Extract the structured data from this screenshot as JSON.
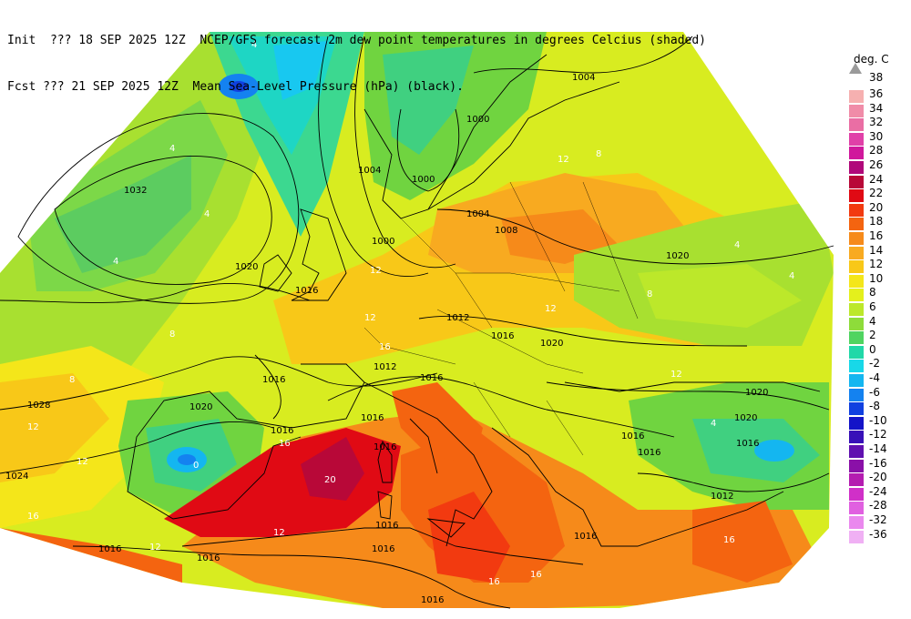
{
  "header": {
    "line1": "Init  ??? 18 SEP 2025 12Z  NCEP/GFS forecast 2m dew point temperatures in degrees Celcius (shaded)",
    "line2": "Fcst ??? 21 SEP 2025 12Z  Mean Sea-Level Pressure (hPa) (black)."
  },
  "legend": {
    "unit": "deg. C",
    "top_marker": "38",
    "entries": [
      {
        "label": "36",
        "color": "#f6b0b0"
      },
      {
        "label": "34",
        "color": "#f08ca8"
      },
      {
        "label": "32",
        "color": "#ea6ea4"
      },
      {
        "label": "30",
        "color": "#e040a8"
      },
      {
        "label": "28",
        "color": "#d0189c"
      },
      {
        "label": "26",
        "color": "#b0087a"
      },
      {
        "label": "24",
        "color": "#b80838"
      },
      {
        "label": "22",
        "color": "#e00a14"
      },
      {
        "label": "20",
        "color": "#f23a10"
      },
      {
        "label": "18",
        "color": "#f46410"
      },
      {
        "label": "16",
        "color": "#f68a1a"
      },
      {
        "label": "14",
        "color": "#f8aa20"
      },
      {
        "label": "12",
        "color": "#f8c818"
      },
      {
        "label": "10",
        "color": "#f4e61a"
      },
      {
        "label": "8",
        "color": "#e4f01c"
      },
      {
        "label": "6",
        "color": "#bce82a"
      },
      {
        "label": "4",
        "color": "#8edc3a"
      },
      {
        "label": "2",
        "color": "#50d460"
      },
      {
        "label": "0",
        "color": "#20d8a8"
      },
      {
        "label": "-2",
        "color": "#18d8e8"
      },
      {
        "label": "-4",
        "color": "#14b6f0"
      },
      {
        "label": "-6",
        "color": "#1482f0"
      },
      {
        "label": "-8",
        "color": "#1040e0"
      },
      {
        "label": "-10",
        "color": "#1414c8"
      },
      {
        "label": "-12",
        "color": "#3810b8"
      },
      {
        "label": "-14",
        "color": "#6010b0"
      },
      {
        "label": "-16",
        "color": "#8a10a8"
      },
      {
        "label": "-20",
        "color": "#b41cb0"
      },
      {
        "label": "-24",
        "color": "#d030c8"
      },
      {
        "label": "-28",
        "color": "#e060e0"
      },
      {
        "label": "-32",
        "color": "#ea88ee"
      },
      {
        "label": "-36",
        "color": "#f0b0f4"
      }
    ]
  },
  "pressure_labels": [
    "1004",
    "1000",
    "1004",
    "1000",
    "1004",
    "1008",
    "1032",
    "1020",
    "1016",
    "1000",
    "1012",
    "1016",
    "1020",
    "1020",
    "1016",
    "1012",
    "1016",
    "1028",
    "1020",
    "1016",
    "1016",
    "1016",
    "1024",
    "1020",
    "1020",
    "1016",
    "1016",
    "1012",
    "1016",
    "1016",
    "1016",
    "1016",
    "1016",
    "1016",
    "1016"
  ],
  "dewpoint_labels": [
    "4",
    "4",
    "8",
    "4",
    "4",
    "8",
    "12",
    "16",
    "12",
    "12",
    "12",
    "8",
    "12",
    "16",
    "20",
    "16",
    "12",
    "16",
    "16",
    "12",
    "8",
    "4",
    "0",
    "4",
    "4",
    "12",
    "12",
    "16"
  ]
}
